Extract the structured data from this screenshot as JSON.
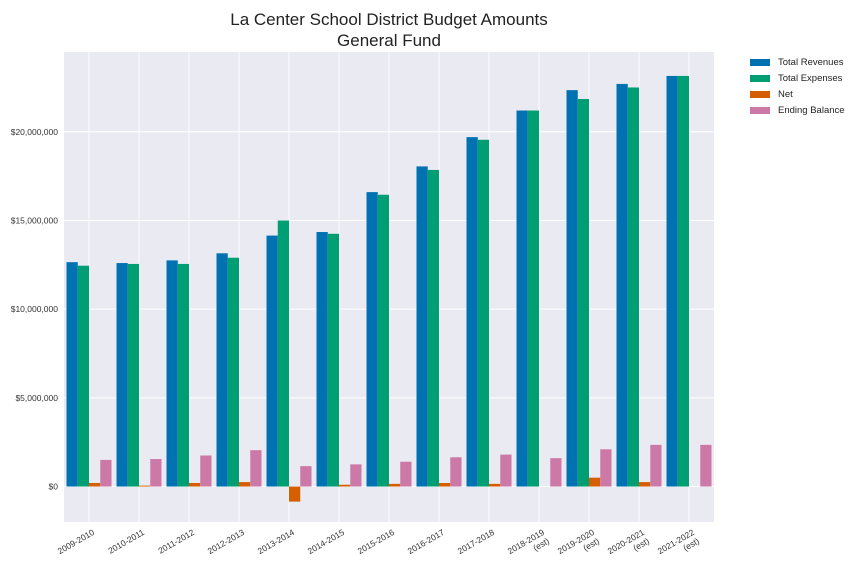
{
  "chart_data": {
    "type": "bar",
    "title": "La Center School District Budget Amounts",
    "subtitle": "General Fund",
    "categories": [
      [
        "2009-2010"
      ],
      [
        "2010-2011"
      ],
      [
        "2011-2012"
      ],
      [
        "2012-2013"
      ],
      [
        "2013-2014"
      ],
      [
        "2014-2015"
      ],
      [
        "2015-2016"
      ],
      [
        "2016-2017"
      ],
      [
        "2017-2018"
      ],
      [
        "2018-2019",
        "(est)"
      ],
      [
        "2019-2020",
        "(est)"
      ],
      [
        "2020-2021",
        "(est)"
      ],
      [
        "2021-2022",
        "(est)"
      ]
    ],
    "series": [
      {
        "name": "Total Revenues",
        "color": "#0072B2",
        "values": [
          12650000,
          12600000,
          12750000,
          13150000,
          14150000,
          14350000,
          16600000,
          18050000,
          19700000,
          21200000,
          22350000,
          22700000,
          23150000
        ]
      },
      {
        "name": "Total Expenses",
        "color": "#009E73",
        "values": [
          12450000,
          12550000,
          12550000,
          12900000,
          15000000,
          14250000,
          16450000,
          17850000,
          19550000,
          21200000,
          21850000,
          22500000,
          23150000
        ]
      },
      {
        "name": "Net",
        "color": "#D55E00",
        "values": [
          200000,
          50000,
          200000,
          250000,
          -850000,
          100000,
          150000,
          200000,
          150000,
          0,
          500000,
          250000,
          0
        ]
      },
      {
        "name": "Ending Balance",
        "color": "#CC79A7",
        "values": [
          1500000,
          1550000,
          1750000,
          2050000,
          1150000,
          1250000,
          1400000,
          1650000,
          1800000,
          1600000,
          2100000,
          2350000,
          2350000
        ]
      }
    ],
    "yticks": [
      0,
      5000000,
      10000000,
      15000000,
      20000000
    ],
    "ytick_labels": [
      "$0",
      "$5,000,000",
      "$10,000,000",
      "$15,000,000",
      "$20,000,000"
    ],
    "ylim": [
      -2000000,
      24500000
    ],
    "grid": true,
    "legend_position": "outside-top-right"
  }
}
